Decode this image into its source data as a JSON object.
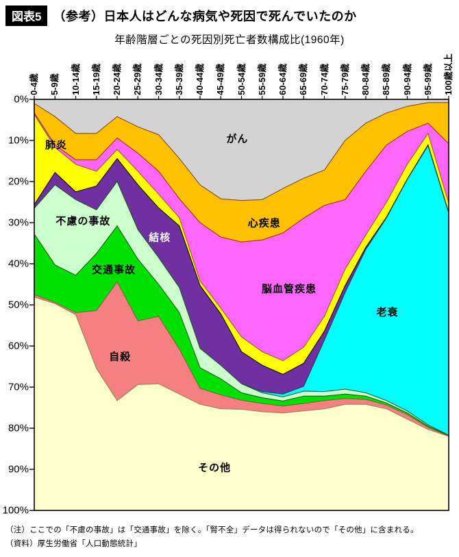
{
  "header": {
    "badge": "図表5",
    "title": "（参考）日本人はどんな病気や死因で死んでいたのか",
    "subtitle": "年齢階層ごとの死因別死亡者数構成比(1960年)"
  },
  "notes": {
    "line1": "（注）ここでの「不慮の事故」は「交通事故」を除く。「腎不全」データは得られないので「その他」に含まれる。",
    "line2": "（資料）厚生労働省「人口動態統計」"
  },
  "chart_data": {
    "type": "area",
    "stacked": true,
    "units": "%",
    "y_axis": {
      "direction": "top-to-bottom",
      "min": 0,
      "max": 100,
      "tick_step": 10,
      "tick_labels": [
        "0%",
        "10%",
        "20%",
        "30%",
        "40%",
        "50%",
        "60%",
        "70%",
        "80%",
        "90%",
        "100%"
      ]
    },
    "categories": [
      "0-4歳",
      "5-9歳",
      "10-14歳",
      "15-19歳",
      "20-24歳",
      "25-29歳",
      "30-34歳",
      "35-39歳",
      "40-44歳",
      "45-49歳",
      "50-54歳",
      "55-59歳",
      "60-64歳",
      "65-69歳",
      "70-74歳",
      "75-79歳",
      "80-84歳",
      "85-89歳",
      "90-94歳",
      "95-99歳",
      "100歳以上"
    ],
    "series": [
      {
        "name": "がん",
        "color": "#d3d3d3",
        "stroke": "#8c6d1f",
        "values": [
          1.0,
          4.2,
          8.3,
          8.3,
          4.2,
          6.7,
          8.6,
          14.4,
          20.8,
          24.2,
          24.6,
          24.4,
          21.7,
          19.2,
          17.2,
          10.0,
          5.8,
          3.3,
          1.7,
          0.8,
          0.8
        ]
      },
      {
        "name": "心疾患",
        "color": "#ffc000",
        "stroke": "#8b4500",
        "values": [
          2.3,
          6.9,
          6.4,
          6.4,
          5.2,
          6.4,
          8.9,
          9.8,
          9.2,
          9.3,
          10.1,
          9.8,
          10.8,
          9.7,
          8.6,
          14.4,
          11.7,
          7.8,
          6.1,
          5.0,
          10.0
        ]
      },
      {
        "name": "脳血管疾患",
        "color": "#ff66ff",
        "stroke": "#a52a2a",
        "values": [
          0.4,
          0.6,
          1.1,
          2.8,
          2.8,
          4.4,
          5.6,
          4.6,
          14.2,
          17.3,
          23.1,
          27.2,
          31.1,
          31.4,
          27.0,
          16.9,
          15.5,
          13.9,
          8.0,
          2.5,
          14.5
        ]
      },
      {
        "name": "肺炎",
        "color": "#ffff00",
        "stroke": "#8b6914",
        "values": [
          21.9,
          6.1,
          6.7,
          3.6,
          2.2,
          3.3,
          3.3,
          2.0,
          1.1,
          1.4,
          3.6,
          3.3,
          3.3,
          3.9,
          3.6,
          4.0,
          3.0,
          3.6,
          3.6,
          2.8,
          2.2
        ]
      },
      {
        "name": "結核",
        "color": "#7030a0",
        "stroke": "#000000",
        "values": [
          0.9,
          3.0,
          1.9,
          5.8,
          5.6,
          10.9,
          12.1,
          15.0,
          15.3,
          12.5,
          7.8,
          6.4,
          4.8,
          5.6,
          2.2,
          1.7,
          0.5,
          0.2,
          0.1,
          0.2,
          0.2
        ]
      },
      {
        "name": "老衰",
        "color": "#00ffff",
        "stroke": "#005858",
        "values": [
          0,
          0,
          0,
          0,
          0,
          0,
          0,
          0,
          0,
          0,
          0,
          0.3,
          0.7,
          1.2,
          12.5,
          23.5,
          34.9,
          44.5,
          56.3,
          67.9,
          54.0
        ]
      },
      {
        "name": "不慮の事故",
        "color": "#ccffcc",
        "stroke": "#1b5e20",
        "values": [
          6.3,
          19.5,
          18.4,
          10.6,
          10.8,
          7.2,
          6.5,
          6.1,
          4.7,
          3.3,
          2.2,
          1.2,
          1.0,
          1.2,
          1.1,
          1.2,
          0.8,
          0.6,
          0.5,
          0.3,
          0.1
        ]
      },
      {
        "name": "交通事故",
        "color": "#00e000",
        "stroke": "#006400",
        "values": [
          14.7,
          9.1,
          9.1,
          13.9,
          13.6,
          15.0,
          7.8,
          8.9,
          5.0,
          3.9,
          1.8,
          1.4,
          1.2,
          1.8,
          1.1,
          1.1,
          0.8,
          0.5,
          0.4,
          0.3,
          0.1
        ]
      },
      {
        "name": "自殺",
        "color": "#f48080",
        "stroke": "#a05050",
        "values": [
          0.6,
          0.3,
          0.5,
          14.1,
          28.9,
          15.5,
          16.4,
          10.9,
          3.9,
          3.4,
          2.2,
          2.0,
          1.7,
          1.8,
          2.0,
          1.4,
          1.2,
          0.9,
          1.1,
          0.5,
          0.1
        ]
      },
      {
        "name": "その他",
        "color": "#ffffcc",
        "stroke": "#8b8b5a",
        "values": [
          51.9,
          50.3,
          47.6,
          34.5,
          26.7,
          30.6,
          30.8,
          28.3,
          25.8,
          24.7,
          24.6,
          24.0,
          23.7,
          24.2,
          24.7,
          25.8,
          25.8,
          24.7,
          22.2,
          19.7,
          18.0
        ]
      }
    ],
    "area_labels": [
      {
        "text": "肺炎",
        "x": 0.053,
        "y": 11.0,
        "color": "#000000"
      },
      {
        "text": "がん",
        "x": 0.49,
        "y": 9.5,
        "color": "#000000"
      },
      {
        "text": "心疾患",
        "x": 0.555,
        "y": 30.0,
        "color": "#000000"
      },
      {
        "text": "結核",
        "x": 0.303,
        "y": 33.5,
        "color": "#ffffff"
      },
      {
        "text": "脳血管疾患",
        "x": 0.615,
        "y": 46.0,
        "color": "#000000"
      },
      {
        "text": "不慮の事故",
        "x": 0.118,
        "y": 29.5,
        "color": "#000000"
      },
      {
        "text": "交通事故",
        "x": 0.192,
        "y": 41.3,
        "color": "#000000"
      },
      {
        "text": "自殺",
        "x": 0.207,
        "y": 62.5,
        "color": "#000000"
      },
      {
        "text": "老衰",
        "x": 0.852,
        "y": 51.7,
        "color": "#000000"
      },
      {
        "text": "その他",
        "x": 0.435,
        "y": 89.5,
        "color": "#000000"
      }
    ]
  }
}
